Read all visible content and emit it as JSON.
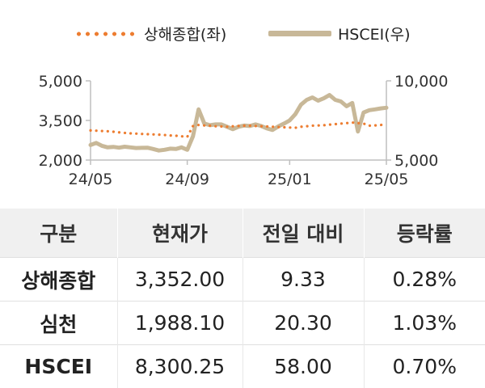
{
  "chart_data": {
    "type": "line",
    "legend": {
      "placement": "top"
    },
    "grid": false,
    "x_tick_labels": [
      "24/05",
      "24/09",
      "25/01",
      "25/05"
    ],
    "x_tick_index": [
      0,
      17,
      35,
      52
    ],
    "y_left": {
      "ticks": [
        "5,000",
        "3,500",
        "2,000"
      ],
      "tick_values": [
        5000,
        3500,
        2000
      ],
      "range": [
        2000,
        5000
      ]
    },
    "y_right": {
      "ticks": [
        "10,000",
        "5,000"
      ],
      "tick_values": [
        10000,
        5000
      ],
      "range": [
        5000,
        10000
      ]
    },
    "series": [
      {
        "name": "상해종합(좌)",
        "axis": "left",
        "color": "#ED7D31",
        "style": "dotted",
        "values": [
          3120,
          3110,
          3100,
          3090,
          3070,
          3050,
          3030,
          3010,
          3000,
          2990,
          2980,
          2970,
          2960,
          2950,
          2930,
          2920,
          2900,
          2880,
          3290,
          3330,
          3310,
          3300,
          3280,
          3270,
          3260,
          3280,
          3290,
          3300,
          3300,
          3290,
          3280,
          3270,
          3260,
          3250,
          3240,
          3230,
          3220,
          3260,
          3280,
          3300,
          3310,
          3320,
          3340,
          3360,
          3380,
          3400,
          3420,
          3400,
          3380,
          3300,
          3310,
          3330,
          3352
        ]
      },
      {
        "name": "HSCEI(우)",
        "axis": "right",
        "color": "#C8B898",
        "style": "solid",
        "values": [
          5950,
          6080,
          5900,
          5800,
          5830,
          5780,
          5840,
          5800,
          5760,
          5770,
          5780,
          5700,
          5600,
          5650,
          5720,
          5700,
          5800,
          5650,
          6500,
          8200,
          7300,
          7200,
          7250,
          7250,
          7100,
          6950,
          7100,
          7180,
          7150,
          7250,
          7150,
          7000,
          6900,
          7120,
          7300,
          7500,
          7900,
          8500,
          8800,
          8950,
          8750,
          8900,
          9100,
          8800,
          8700,
          8400,
          8600,
          6800,
          8000,
          8150,
          8200,
          8260,
          8300
        ]
      }
    ]
  },
  "table": {
    "headers": [
      "구분",
      "현재가",
      "전일 대비",
      "등락률"
    ],
    "rows": [
      [
        "상해종합",
        "3,352.00",
        "9.33",
        "0.28%"
      ],
      [
        "심천",
        "1,988.10",
        "20.30",
        "1.03%"
      ],
      [
        "HSCEI",
        "8,300.25",
        "58.00",
        "0.70%"
      ]
    ]
  }
}
